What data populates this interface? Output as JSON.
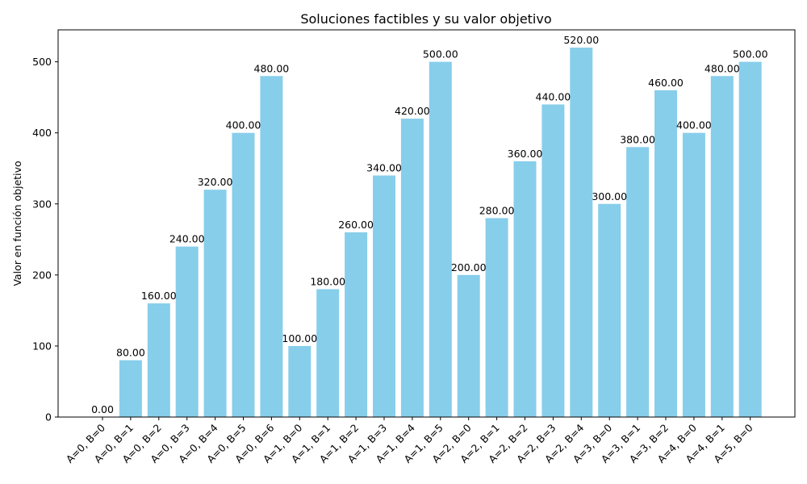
{
  "chart_data": {
    "type": "bar",
    "title": "Soluciones factibles y su valor objetivo",
    "xlabel": "",
    "ylabel": "Valor en función objetivo",
    "ylim": [
      0,
      545
    ],
    "yticks": [
      0,
      100,
      200,
      300,
      400,
      500
    ],
    "grid": false,
    "legend": "none",
    "bar_color": "#87CEEB",
    "categories": [
      "A=0, B=0",
      "A=0, B=1",
      "A=0, B=2",
      "A=0, B=3",
      "A=0, B=4",
      "A=0, B=5",
      "A=0, B=6",
      "A=1, B=0",
      "A=1, B=1",
      "A=1, B=2",
      "A=1, B=3",
      "A=1, B=4",
      "A=1, B=5",
      "A=2, B=0",
      "A=2, B=1",
      "A=2, B=2",
      "A=2, B=3",
      "A=2, B=4",
      "A=3, B=0",
      "A=3, B=1",
      "A=3, B=2",
      "A=4, B=0",
      "A=4, B=1",
      "A=5, B=0"
    ],
    "values": [
      0,
      80,
      160,
      240,
      320,
      400,
      480,
      100,
      180,
      260,
      340,
      420,
      500,
      200,
      280,
      360,
      440,
      520,
      300,
      380,
      460,
      400,
      480,
      500
    ],
    "data_labels": [
      "0.00",
      "80.00",
      "160.00",
      "240.00",
      "320.00",
      "400.00",
      "480.00",
      "100.00",
      "180.00",
      "260.00",
      "340.00",
      "420.00",
      "500.00",
      "200.00",
      "280.00",
      "360.00",
      "440.00",
      "520.00",
      "300.00",
      "380.00",
      "460.00",
      "400.00",
      "480.00",
      "500.00"
    ]
  }
}
